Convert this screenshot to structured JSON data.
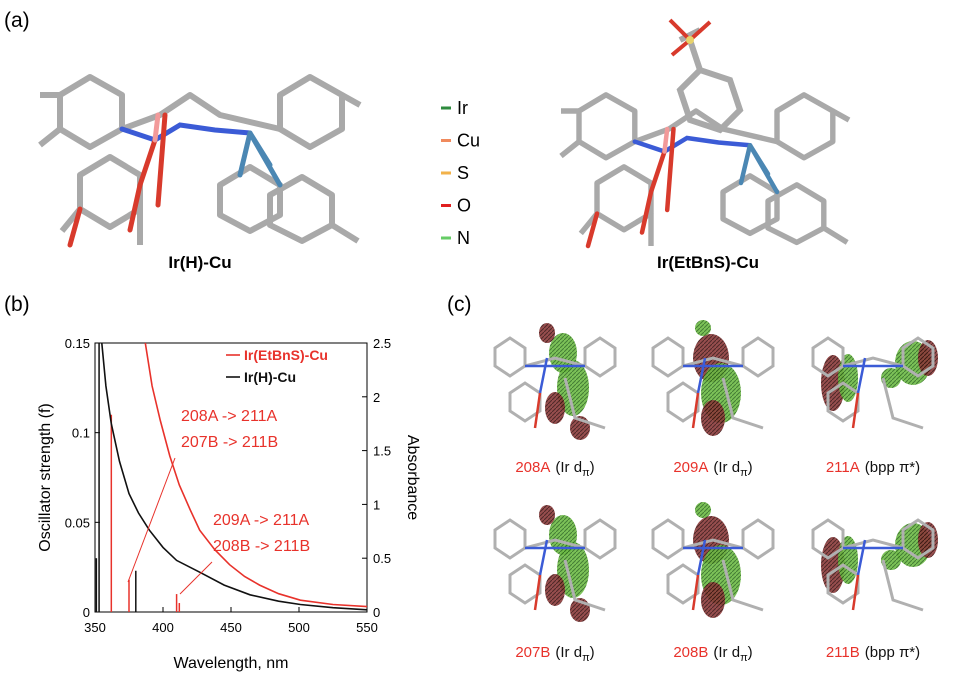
{
  "panels": [
    "(a)",
    "(b)",
    "(c)"
  ],
  "molecules": [
    "Ir(H)-Cu",
    "Ir(EtBnS)-Cu"
  ],
  "atom_legend": [
    {
      "label": "Ir",
      "color": "#2e8b3e"
    },
    {
      "label": "Cu",
      "color": "#f08a5d"
    },
    {
      "label": "S",
      "color": "#f2b24a"
    },
    {
      "label": "O",
      "color": "#e02020"
    },
    {
      "label": "N",
      "color": "#66cc66"
    }
  ],
  "chart_data": {
    "type": "spectrum",
    "xlabel": "Wavelength, nm",
    "ylabel": "Oscillator strength (f)",
    "y2label": "Absorbance",
    "xlim": [
      350,
      550
    ],
    "ylim": [
      0,
      0.15
    ],
    "y2lim": [
      0,
      2.5
    ],
    "xticks": [
      350,
      400,
      450,
      500,
      550
    ],
    "yticks": [
      0,
      0.05,
      0.1,
      0.15
    ],
    "y2ticks": [
      0,
      0.5,
      1,
      1.5,
      2,
      2.5
    ],
    "series": [
      {
        "name": "Ir(EtBnS)-Cu",
        "color": "#e8322b",
        "axis": "y2",
        "x": [
          387,
          392,
          398,
          405,
          412,
          420,
          427,
          438,
          449,
          460,
          471,
          485,
          501,
          525,
          550
        ],
        "values": [
          2.5,
          2.1,
          1.78,
          1.45,
          1.18,
          0.95,
          0.76,
          0.58,
          0.44,
          0.33,
          0.25,
          0.17,
          0.11,
          0.07,
          0.05
        ]
      },
      {
        "name": "Ir(H)-Cu",
        "color": "#111111",
        "axis": "y2",
        "x": [
          355,
          358,
          362,
          368,
          375,
          382,
          390,
          400,
          410,
          427,
          445,
          464,
          485,
          501,
          525,
          550
        ],
        "values": [
          2.5,
          2.1,
          1.75,
          1.4,
          1.1,
          0.92,
          0.76,
          0.6,
          0.48,
          0.37,
          0.25,
          0.16,
          0.1,
          0.07,
          0.04,
          0.02
        ]
      }
    ],
    "sticks": [
      {
        "color": "#e8322b",
        "x": [
          362,
          375,
          410,
          412
        ],
        "values": [
          0.11,
          0.018,
          0.01,
          0.005
        ]
      },
      {
        "color": "#111111",
        "x": [
          351,
          353,
          380
        ],
        "values": [
          0.03,
          0.15,
          0.023
        ]
      }
    ],
    "annotations": [
      {
        "lines": [
          "208A -> 211A",
          "207B -> 211B"
        ]
      },
      {
        "lines": [
          "209A -> 211A",
          "208B -> 211B"
        ]
      }
    ]
  },
  "orbitals": [
    {
      "code": "208A",
      "desc": [
        "(Ir d",
        "π",
        ")"
      ]
    },
    {
      "code": "209A",
      "desc": [
        "(Ir d",
        "π",
        ")"
      ]
    },
    {
      "code": "211A",
      "desc": [
        "(bpp π*)"
      ]
    },
    {
      "code": "207B",
      "desc": [
        "(Ir d",
        "π",
        ")"
      ]
    },
    {
      "code": "208B",
      "desc": [
        "(Ir d",
        "π",
        ")"
      ]
    },
    {
      "code": "211B",
      "desc": [
        "(bpp π*)"
      ]
    }
  ]
}
